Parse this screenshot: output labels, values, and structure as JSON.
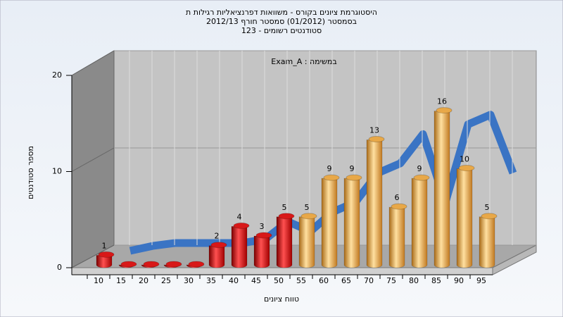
{
  "chart_data": {
    "type": "bar",
    "title": [
      "היסטוגרמת ציונים בקורס - משוואות דפרנציאליות רגילות ת",
      "בסמסטר (01/2012) סמסטר חורף 2012/13",
      "סטודנטים רשומים - 123"
    ],
    "annotation": "במשימה : Exam_A",
    "x_label": "טווח ציונים",
    "y_label": "מספר סטודנטים",
    "categories": [
      "10",
      "15",
      "20",
      "25",
      "30",
      "35",
      "40",
      "45",
      "50",
      "55",
      "60",
      "65",
      "70",
      "75",
      "80",
      "85",
      "90",
      "95"
    ],
    "values": [
      1,
      0,
      0,
      0,
      0,
      2,
      4,
      3,
      5,
      5,
      9,
      9,
      13,
      6,
      9,
      16,
      10,
      5
    ],
    "colors": [
      "#d81818",
      "#d81818",
      "#d81818",
      "#d81818",
      "#d81818",
      "#d81818",
      "#d81818",
      "#d81818",
      "#d81818",
      "#e8a848",
      "#e8a848",
      "#e8a848",
      "#e8a848",
      "#e8a848",
      "#e8a848",
      "#e8a848",
      "#e8a848",
      "#e8a848"
    ],
    "line": {
      "color": "#3a74c4",
      "values": [
        0,
        0.5,
        0.8,
        0.8,
        0.8,
        0.8,
        1.2,
        3,
        2,
        4,
        5,
        8,
        9,
        12,
        5,
        13,
        14,
        8
      ]
    },
    "ylim": [
      0,
      20
    ],
    "yticks": [
      0,
      10,
      20
    ],
    "grid": true
  }
}
